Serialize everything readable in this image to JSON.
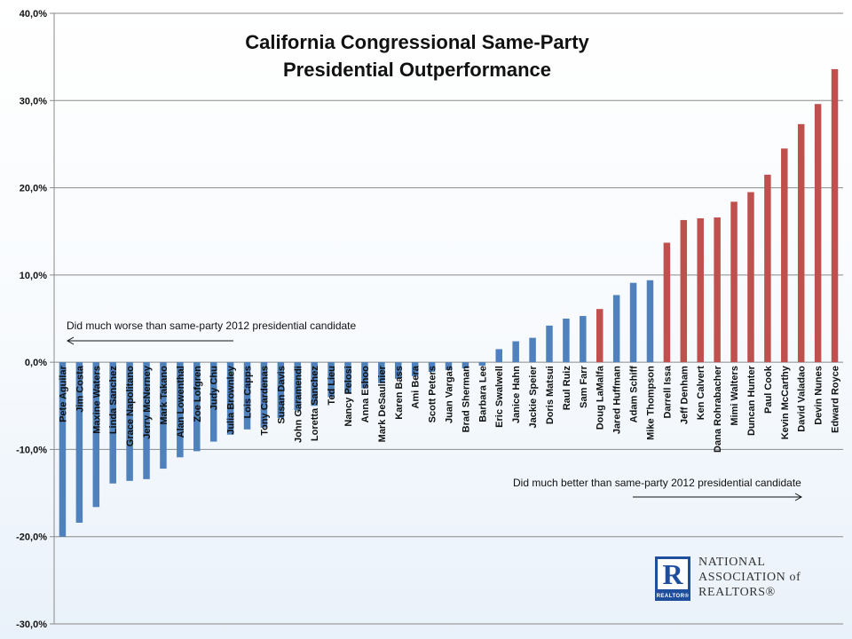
{
  "chart_data": {
    "type": "bar",
    "title": "California Congressional Same-Party Presidential Outperformance",
    "title_lines": [
      "California Congressional Same-Party",
      "Presidential Outperformance"
    ],
    "ylim": [
      -30,
      40
    ],
    "yticks": [
      -30,
      -20,
      -10,
      0,
      10,
      20,
      30,
      40
    ],
    "ytick_labels": [
      "-30,0%",
      "-20,0%",
      "-10,0%",
      "0,0%",
      "10,0%",
      "20,0%",
      "30,0%",
      "40,0%"
    ],
    "grid": true,
    "categories": [
      "Pete Aguilar",
      "Jim Costa",
      "Maxine Waters",
      "Linda Sanchez",
      "Grace Napolitano",
      "Jerry McNerney",
      "Mark Takano",
      "Alan Lowenthal",
      "Zoe Lofgren",
      "Judy Chu",
      "Julia Brownley",
      "Lois Capps",
      "Tony Cardenas",
      "Susan Davis",
      "John Garamendi",
      "Loretta Sanchez",
      "Ted Lieu",
      "Nancy Pelosi",
      "Anna Eshoo",
      "Mark DeSaulnier",
      "Karen Bass",
      "Ami Bera",
      "Scott Peters",
      "Juan Vargas",
      "Brad Sherman",
      "Barbara Lee",
      "Eric Swalwell",
      "Janice Hahn",
      "Jackie Speier",
      "Doris Matsui",
      "Raul Ruiz",
      "Sam Farr",
      "Doug LaMalfa",
      "Jared Huffman",
      "Adam Schiff",
      "Mike Thompson",
      "Darrell Issa",
      "Jeff Denham",
      "Ken Calvert",
      "Dana Rohrabacher",
      "Mimi Walters",
      "Duncan Hunter",
      "Paul Cook",
      "Kevin McCarthy",
      "David Valadao",
      "Devin Nunes",
      "Edward Royce"
    ],
    "values": [
      -20.0,
      -18.4,
      -16.6,
      -13.9,
      -13.6,
      -13.4,
      -12.2,
      -10.9,
      -10.2,
      -9.1,
      -8.3,
      -7.7,
      -7.5,
      -6.4,
      -5.5,
      -5.0,
      -4.0,
      -3.6,
      -3.0,
      -2.4,
      -1.9,
      -1.6,
      -1.1,
      -0.9,
      -0.7,
      -0.4,
      1.5,
      2.4,
      2.8,
      4.2,
      5.0,
      5.3,
      6.1,
      7.7,
      9.1,
      9.4,
      13.7,
      16.3,
      16.5,
      16.6,
      18.4,
      19.5,
      21.5,
      24.5,
      27.3,
      29.6,
      33.6
    ],
    "parties": [
      "D",
      "D",
      "D",
      "D",
      "D",
      "D",
      "D",
      "D",
      "D",
      "D",
      "D",
      "D",
      "D",
      "D",
      "D",
      "D",
      "D",
      "D",
      "D",
      "D",
      "D",
      "D",
      "D",
      "D",
      "D",
      "D",
      "D",
      "D",
      "D",
      "D",
      "D",
      "D",
      "R",
      "D",
      "D",
      "D",
      "R",
      "R",
      "R",
      "R",
      "R",
      "R",
      "R",
      "R",
      "R",
      "R",
      "R"
    ],
    "colors": {
      "D": "#4f81bd",
      "R": "#c0504d"
    },
    "annotations": [
      "Did much worse than same-party 2012 presidential candidate",
      "Did much better than same-party 2012 presidential candidate"
    ]
  },
  "logo": {
    "mark": "R",
    "mark_word": "REALTOR®",
    "lines": [
      "NATIONAL",
      "ASSOCIATION of",
      "REALTORS®"
    ]
  }
}
